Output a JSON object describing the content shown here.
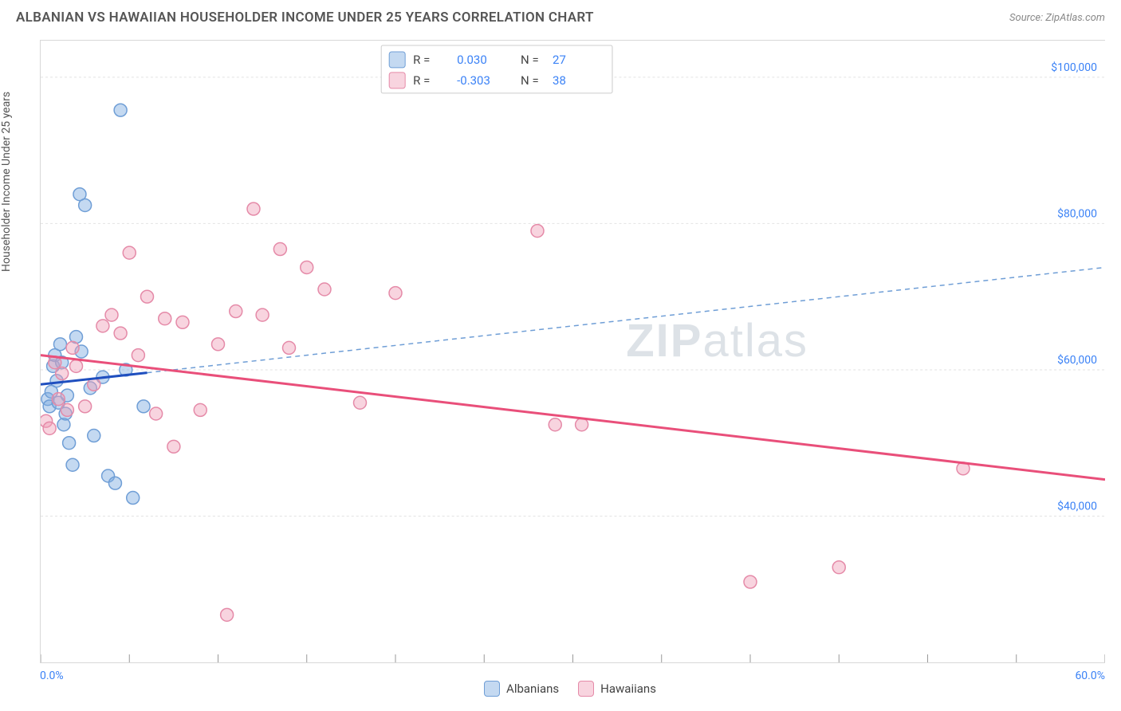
{
  "header": {
    "title": "ALBANIAN VS HAWAIIAN HOUSEHOLDER INCOME UNDER 25 YEARS CORRELATION CHART",
    "source": "Source: ZipAtlas.com"
  },
  "chart": {
    "type": "scatter",
    "ylabel": "Householder Income Under 25 years",
    "xlim": [
      0,
      60
    ],
    "ylim": [
      20000,
      105000
    ],
    "xtick_positions": [
      0,
      5,
      10,
      15,
      20,
      25,
      30,
      35,
      40,
      45,
      50,
      55,
      60
    ],
    "ytick_positions": [
      40000,
      60000,
      80000,
      100000
    ],
    "ytick_labels": [
      "$40,000",
      "$60,000",
      "$80,000",
      "$100,000"
    ],
    "xaxis_start_label": "0.0%",
    "xaxis_end_label": "60.0%",
    "grid_color": "#e2e2e2",
    "background_color": "#ffffff",
    "series": [
      {
        "name": "Albanians",
        "color_fill": "rgba(125,170,225,0.45)",
        "color_stroke": "#6f9ed6",
        "trend_solid_color": "#1f4fbf",
        "trend_dash_color": "#6f9ed6",
        "r_value": "0.030",
        "n_value": "27",
        "trend": {
          "x1": 0,
          "y1": 58000,
          "x2": 60,
          "y2": 74000,
          "solid_until_x": 6
        },
        "points": [
          [
            0.4,
            56000
          ],
          [
            0.5,
            55000
          ],
          [
            0.6,
            57000
          ],
          [
            0.7,
            60500
          ],
          [
            0.8,
            62000
          ],
          [
            0.9,
            58500
          ],
          [
            1.0,
            55500
          ],
          [
            1.1,
            63500
          ],
          [
            1.2,
            61000
          ],
          [
            1.3,
            52500
          ],
          [
            1.4,
            54000
          ],
          [
            1.5,
            56500
          ],
          [
            1.6,
            50000
          ],
          [
            1.8,
            47000
          ],
          [
            2.0,
            64500
          ],
          [
            2.2,
            84000
          ],
          [
            2.3,
            62500
          ],
          [
            2.5,
            82500
          ],
          [
            2.8,
            57500
          ],
          [
            3.0,
            51000
          ],
          [
            3.5,
            59000
          ],
          [
            3.8,
            45500
          ],
          [
            4.2,
            44500
          ],
          [
            4.5,
            95500
          ],
          [
            5.2,
            42500
          ],
          [
            5.8,
            55000
          ],
          [
            4.8,
            60000
          ]
        ]
      },
      {
        "name": "Hawaiians",
        "color_fill": "rgba(240,160,185,0.45)",
        "color_stroke": "#e58aa8",
        "trend_solid_color": "#e94f7a",
        "trend_dash_color": "#e58aa8",
        "r_value": "-0.303",
        "n_value": "38",
        "trend": {
          "x1": 0,
          "y1": 62000,
          "x2": 60,
          "y2": 45000,
          "solid_until_x": 60
        },
        "points": [
          [
            0.3,
            53000
          ],
          [
            0.5,
            52000
          ],
          [
            0.8,
            61000
          ],
          [
            1.0,
            56000
          ],
          [
            1.2,
            59500
          ],
          [
            1.5,
            54500
          ],
          [
            1.8,
            63000
          ],
          [
            2.0,
            60500
          ],
          [
            2.5,
            55000
          ],
          [
            3.0,
            58000
          ],
          [
            3.5,
            66000
          ],
          [
            4.0,
            67500
          ],
          [
            4.5,
            65000
          ],
          [
            5.0,
            76000
          ],
          [
            5.5,
            62000
          ],
          [
            6.0,
            70000
          ],
          [
            6.5,
            54000
          ],
          [
            7.0,
            67000
          ],
          [
            7.5,
            49500
          ],
          [
            8.0,
            66500
          ],
          [
            9.0,
            54500
          ],
          [
            10.0,
            63500
          ],
          [
            10.5,
            26500
          ],
          [
            11.0,
            68000
          ],
          [
            12.0,
            82000
          ],
          [
            12.5,
            67500
          ],
          [
            13.5,
            76500
          ],
          [
            14.0,
            63000
          ],
          [
            15.0,
            74000
          ],
          [
            16.0,
            71000
          ],
          [
            18.0,
            55500
          ],
          [
            20.0,
            70500
          ],
          [
            28.0,
            79000
          ],
          [
            29.0,
            52500
          ],
          [
            30.5,
            52500
          ],
          [
            40.0,
            31000
          ],
          [
            45.0,
            33000
          ],
          [
            52.0,
            46500
          ]
        ]
      }
    ],
    "legend_top": {
      "rows": [
        {
          "swatch_series": 0,
          "r_label": "R =",
          "r_val": "0.030",
          "n_label": "N =",
          "n_val": "27"
        },
        {
          "swatch_series": 1,
          "r_label": "R =",
          "r_val": "-0.303",
          "n_label": "N =",
          "n_val": "38"
        }
      ]
    },
    "watermark": {
      "zip": "ZIP",
      "atlas": "atlas"
    },
    "bottom_legend": [
      {
        "series": 0,
        "label": "Albanians"
      },
      {
        "series": 1,
        "label": "Hawaiians"
      }
    ],
    "marker_radius": 8
  }
}
